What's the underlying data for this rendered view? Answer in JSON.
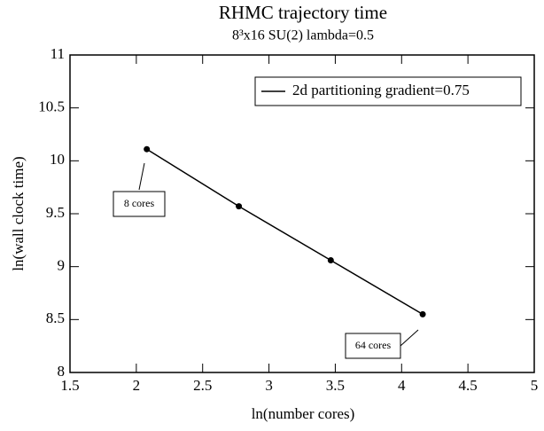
{
  "chart_data": {
    "type": "line",
    "title": "RHMC trajectory time",
    "subtitle": "8³x16 SU(2) lambda=0.5",
    "x_label": "ln(number cores)",
    "y_label": "ln(wall clock time)",
    "x": [
      2.079,
      2.773,
      3.466,
      4.159
    ],
    "series": [
      {
        "name": "2d partitioning gradient=0.75",
        "color": "#000000",
        "values": [
          10.11,
          9.57,
          9.06,
          8.55
        ]
      }
    ],
    "xlim": [
      1.5,
      5
    ],
    "xticks": [
      1.5,
      2,
      2.5,
      3,
      3.5,
      4,
      4.5,
      5
    ],
    "ylim": [
      8,
      11
    ],
    "yticks": [
      8,
      8.5,
      9,
      9.5,
      10,
      10.5,
      11
    ],
    "legend": "upper right",
    "annotations": [
      "8 cores",
      "64 cores"
    ]
  }
}
